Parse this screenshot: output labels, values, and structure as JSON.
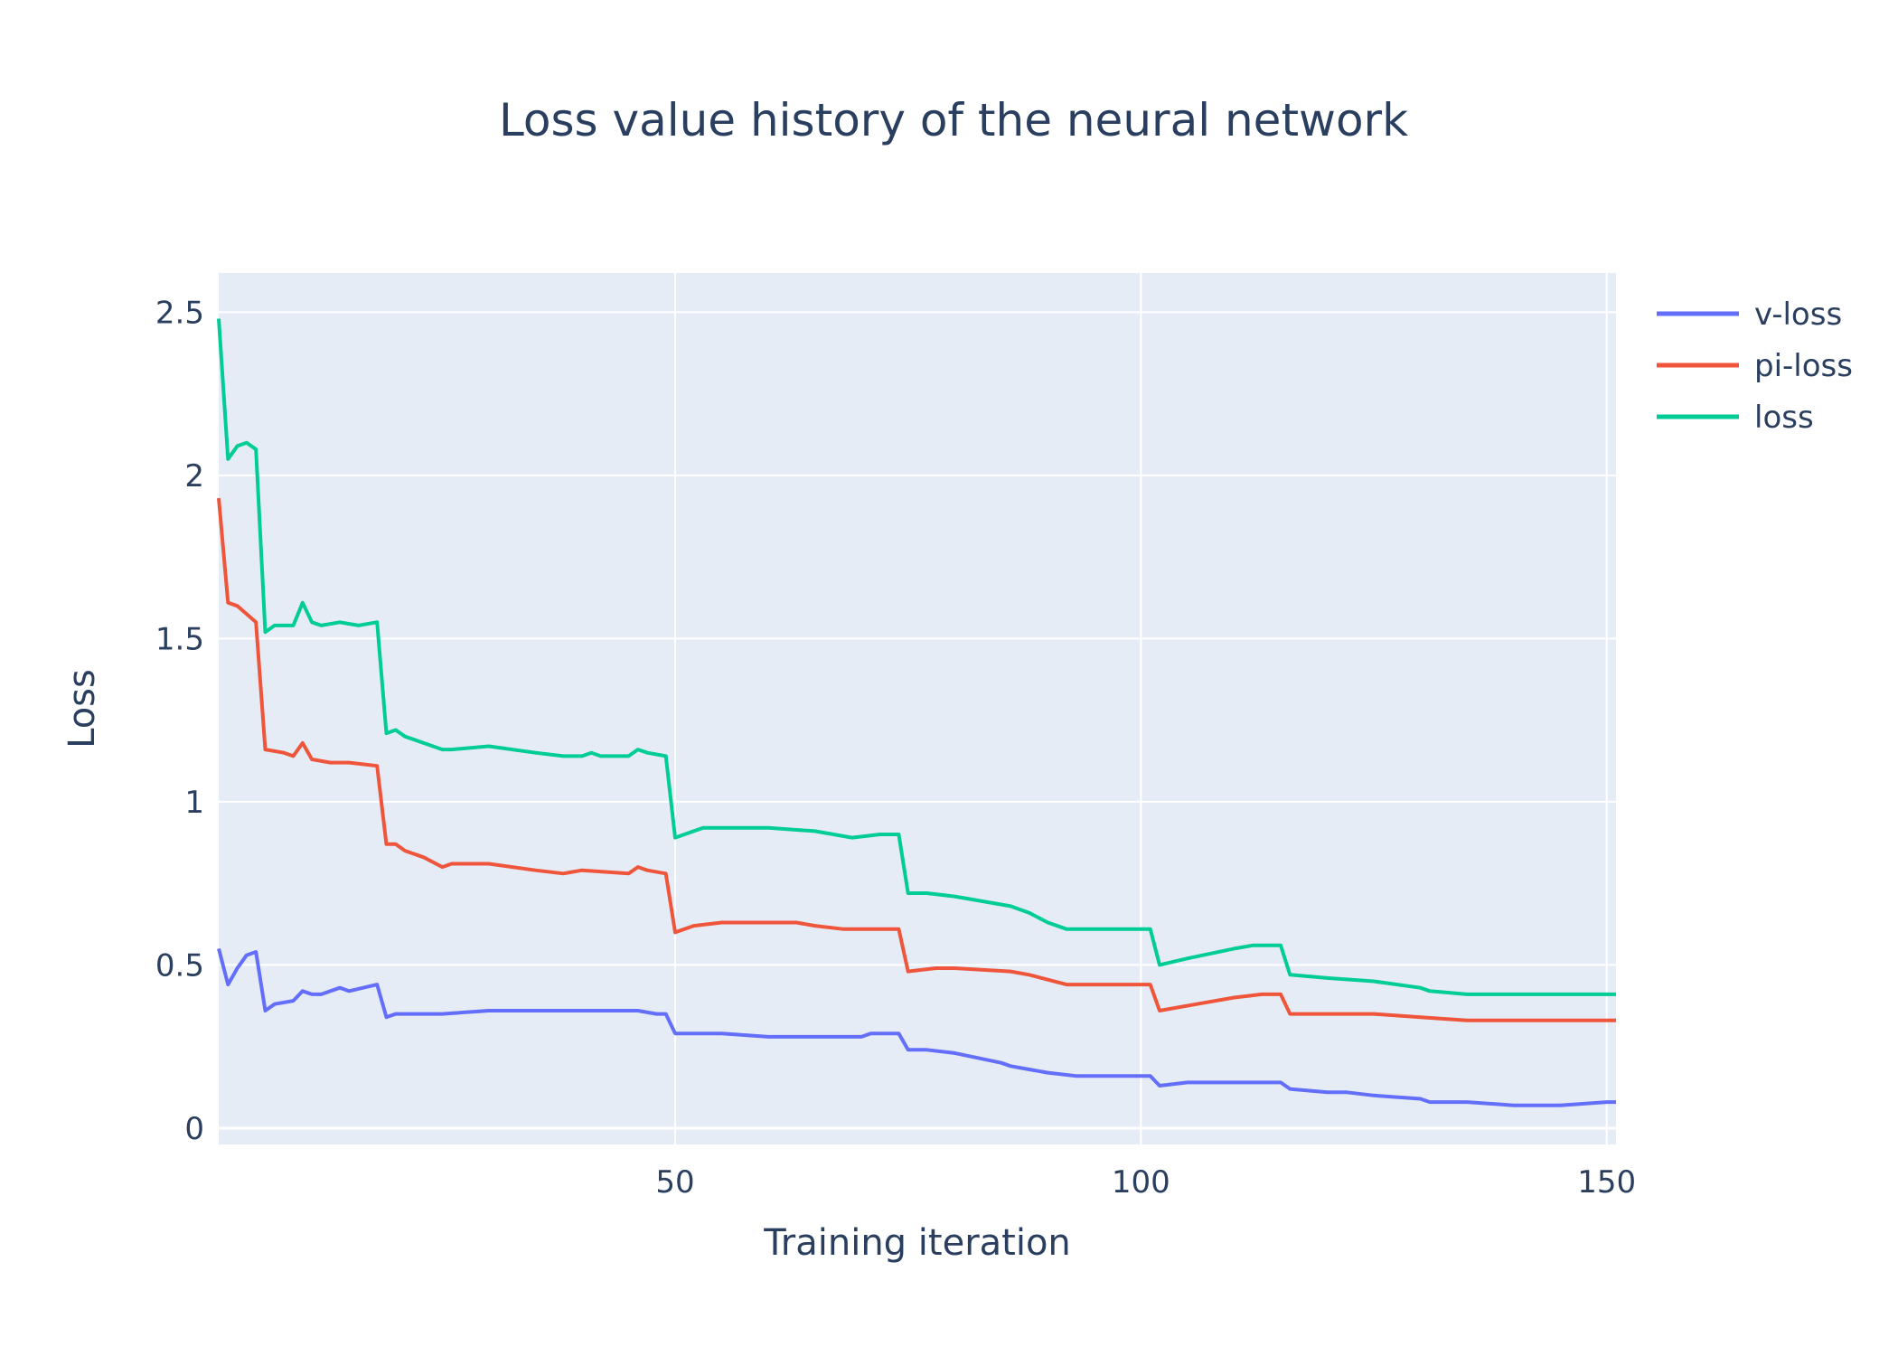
{
  "chart_data": {
    "type": "line",
    "title": "Loss value history of the neural network",
    "xlabel": "Training iteration",
    "ylabel": "Loss",
    "xlim": [
      1,
      151
    ],
    "ylim": [
      -0.05,
      2.62
    ],
    "x_ticks": [
      50,
      100,
      150
    ],
    "y_ticks": [
      0,
      0.5,
      1,
      1.5,
      2,
      2.5
    ],
    "x_tick_labels": [
      "50",
      "100",
      "150"
    ],
    "y_tick_labels": [
      "0",
      "0.5",
      "1",
      "1.5",
      "2",
      "2.5"
    ],
    "grid": true,
    "legend_position": "top-right",
    "plot_background": "#e5ecf6",
    "series": [
      {
        "name": "v-loss",
        "color": "#636efa",
        "points": [
          [
            1,
            0.55
          ],
          [
            2,
            0.44
          ],
          [
            3,
            0.49
          ],
          [
            4,
            0.53
          ],
          [
            5,
            0.54
          ],
          [
            6,
            0.36
          ],
          [
            7,
            0.38
          ],
          [
            9,
            0.39
          ],
          [
            10,
            0.42
          ],
          [
            11,
            0.41
          ],
          [
            12,
            0.41
          ],
          [
            14,
            0.43
          ],
          [
            15,
            0.42
          ],
          [
            18,
            0.44
          ],
          [
            19,
            0.34
          ],
          [
            20,
            0.35
          ],
          [
            25,
            0.35
          ],
          [
            30,
            0.36
          ],
          [
            35,
            0.36
          ],
          [
            38,
            0.36
          ],
          [
            40,
            0.36
          ],
          [
            42,
            0.36
          ],
          [
            45,
            0.36
          ],
          [
            46,
            0.36
          ],
          [
            48,
            0.35
          ],
          [
            49,
            0.35
          ],
          [
            50,
            0.29
          ],
          [
            51,
            0.29
          ],
          [
            55,
            0.29
          ],
          [
            60,
            0.28
          ],
          [
            65,
            0.28
          ],
          [
            70,
            0.28
          ],
          [
            71,
            0.29
          ],
          [
            74,
            0.29
          ],
          [
            75,
            0.24
          ],
          [
            77,
            0.24
          ],
          [
            80,
            0.23
          ],
          [
            85,
            0.2
          ],
          [
            86,
            0.19
          ],
          [
            88,
            0.18
          ],
          [
            90,
            0.17
          ],
          [
            93,
            0.16
          ],
          [
            95,
            0.16
          ],
          [
            101,
            0.16
          ],
          [
            102,
            0.13
          ],
          [
            105,
            0.14
          ],
          [
            110,
            0.14
          ],
          [
            113,
            0.14
          ],
          [
            115,
            0.14
          ],
          [
            116,
            0.12
          ],
          [
            120,
            0.11
          ],
          [
            122,
            0.11
          ],
          [
            125,
            0.1
          ],
          [
            130,
            0.09
          ],
          [
            131,
            0.08
          ],
          [
            135,
            0.08
          ],
          [
            140,
            0.07
          ],
          [
            145,
            0.07
          ],
          [
            150,
            0.08
          ],
          [
            151,
            0.08
          ]
        ]
      },
      {
        "name": "pi-loss",
        "color": "#ef553b",
        "points": [
          [
            1,
            1.93
          ],
          [
            2,
            1.61
          ],
          [
            3,
            1.6
          ],
          [
            5,
            1.55
          ],
          [
            6,
            1.16
          ],
          [
            8,
            1.15
          ],
          [
            9,
            1.14
          ],
          [
            10,
            1.18
          ],
          [
            11,
            1.13
          ],
          [
            13,
            1.12
          ],
          [
            15,
            1.12
          ],
          [
            18,
            1.11
          ],
          [
            19,
            0.87
          ],
          [
            20,
            0.87
          ],
          [
            21,
            0.85
          ],
          [
            23,
            0.83
          ],
          [
            25,
            0.8
          ],
          [
            26,
            0.81
          ],
          [
            30,
            0.81
          ],
          [
            35,
            0.79
          ],
          [
            38,
            0.78
          ],
          [
            40,
            0.79
          ],
          [
            45,
            0.78
          ],
          [
            46,
            0.8
          ],
          [
            47,
            0.79
          ],
          [
            49,
            0.78
          ],
          [
            50,
            0.6
          ],
          [
            52,
            0.62
          ],
          [
            55,
            0.63
          ],
          [
            60,
            0.63
          ],
          [
            63,
            0.63
          ],
          [
            65,
            0.62
          ],
          [
            68,
            0.61
          ],
          [
            69,
            0.61
          ],
          [
            74,
            0.61
          ],
          [
            75,
            0.48
          ],
          [
            78,
            0.49
          ],
          [
            80,
            0.49
          ],
          [
            86,
            0.48
          ],
          [
            88,
            0.47
          ],
          [
            92,
            0.44
          ],
          [
            95,
            0.44
          ],
          [
            101,
            0.44
          ],
          [
            102,
            0.36
          ],
          [
            106,
            0.38
          ],
          [
            110,
            0.4
          ],
          [
            113,
            0.41
          ],
          [
            115,
            0.41
          ],
          [
            116,
            0.35
          ],
          [
            120,
            0.35
          ],
          [
            125,
            0.35
          ],
          [
            130,
            0.34
          ],
          [
            135,
            0.33
          ],
          [
            140,
            0.33
          ],
          [
            145,
            0.33
          ],
          [
            151,
            0.33
          ]
        ]
      },
      {
        "name": "loss",
        "color": "#00cc96",
        "points": [
          [
            1,
            2.48
          ],
          [
            2,
            2.05
          ],
          [
            3,
            2.09
          ],
          [
            4,
            2.1
          ],
          [
            5,
            2.08
          ],
          [
            6,
            1.52
          ],
          [
            7,
            1.54
          ],
          [
            9,
            1.54
          ],
          [
            10,
            1.61
          ],
          [
            11,
            1.55
          ],
          [
            12,
            1.54
          ],
          [
            14,
            1.55
          ],
          [
            16,
            1.54
          ],
          [
            18,
            1.55
          ],
          [
            19,
            1.21
          ],
          [
            20,
            1.22
          ],
          [
            21,
            1.2
          ],
          [
            23,
            1.18
          ],
          [
            25,
            1.16
          ],
          [
            26,
            1.16
          ],
          [
            30,
            1.17
          ],
          [
            35,
            1.15
          ],
          [
            38,
            1.14
          ],
          [
            40,
            1.14
          ],
          [
            41,
            1.15
          ],
          [
            42,
            1.14
          ],
          [
            45,
            1.14
          ],
          [
            46,
            1.16
          ],
          [
            47,
            1.15
          ],
          [
            49,
            1.14
          ],
          [
            50,
            0.89
          ],
          [
            52,
            0.91
          ],
          [
            53,
            0.92
          ],
          [
            55,
            0.92
          ],
          [
            60,
            0.92
          ],
          [
            65,
            0.91
          ],
          [
            67,
            0.9
          ],
          [
            69,
            0.89
          ],
          [
            72,
            0.9
          ],
          [
            74,
            0.9
          ],
          [
            75,
            0.72
          ],
          [
            77,
            0.72
          ],
          [
            80,
            0.71
          ],
          [
            86,
            0.68
          ],
          [
            88,
            0.66
          ],
          [
            90,
            0.63
          ],
          [
            92,
            0.61
          ],
          [
            95,
            0.61
          ],
          [
            101,
            0.61
          ],
          [
            102,
            0.5
          ],
          [
            105,
            0.52
          ],
          [
            110,
            0.55
          ],
          [
            112,
            0.56
          ],
          [
            115,
            0.56
          ],
          [
            116,
            0.47
          ],
          [
            120,
            0.46
          ],
          [
            125,
            0.45
          ],
          [
            130,
            0.43
          ],
          [
            131,
            0.42
          ],
          [
            135,
            0.41
          ],
          [
            140,
            0.41
          ],
          [
            145,
            0.41
          ],
          [
            151,
            0.41
          ]
        ]
      }
    ]
  }
}
